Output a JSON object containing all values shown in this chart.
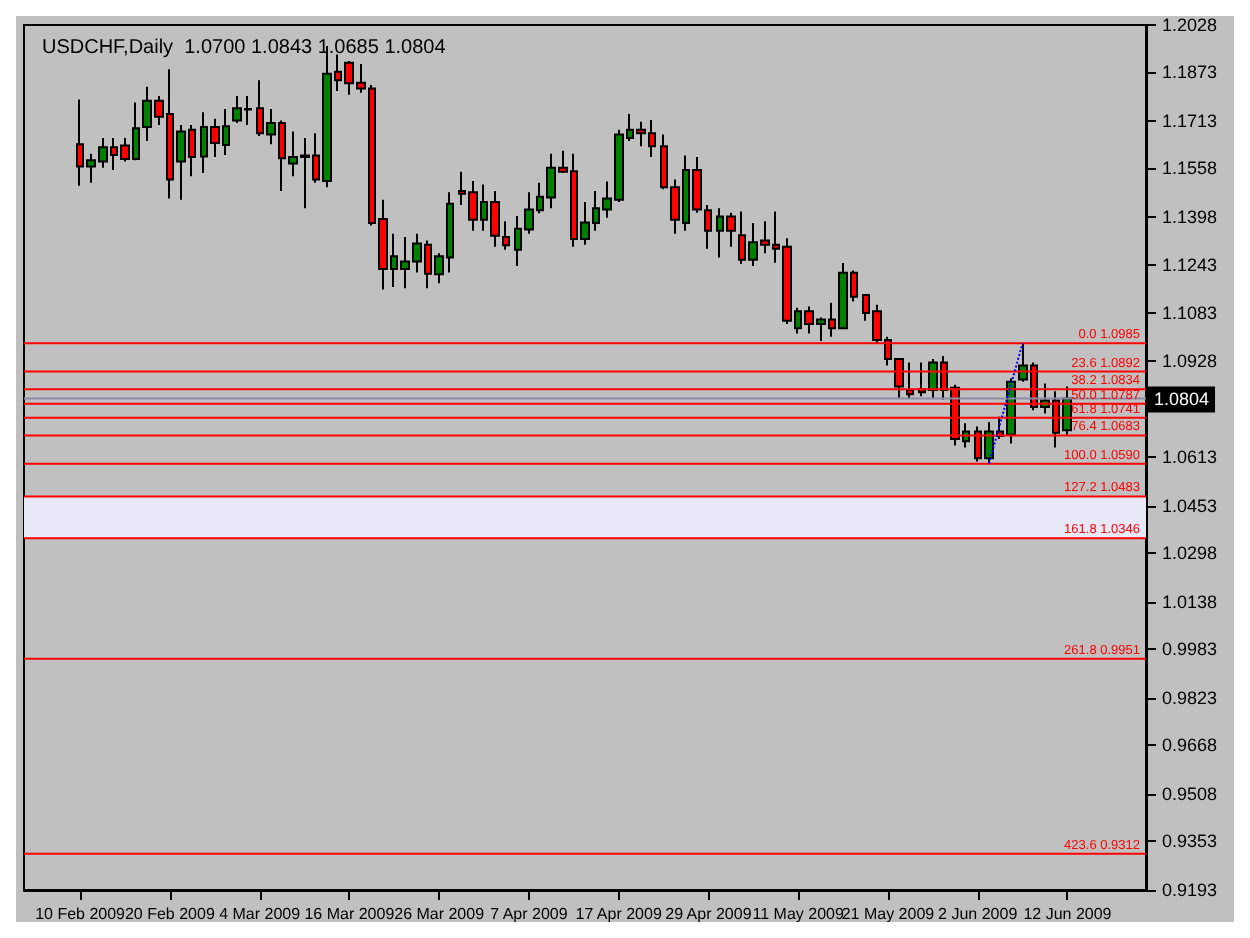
{
  "chart_data": {
    "type": "candlestick",
    "title": "USDCHF,Daily  1.0700 1.0843 1.0685 1.0804",
    "categories": [
      "10 Feb 2009",
      null,
      null,
      null,
      null,
      null,
      null,
      null,
      "20 Feb 2009",
      null,
      null,
      null,
      null,
      null,
      null,
      null,
      "4 Mar 2009",
      null,
      null,
      null,
      null,
      null,
      null,
      null,
      "16 Mar 2009",
      null,
      null,
      null,
      null,
      null,
      null,
      null,
      "26 Mar 2009",
      null,
      null,
      null,
      null,
      null,
      null,
      null,
      "7 Apr 2009",
      null,
      null,
      null,
      null,
      null,
      null,
      null,
      "17 Apr 2009",
      null,
      null,
      null,
      null,
      null,
      null,
      null,
      "29 Apr 2009",
      null,
      null,
      null,
      null,
      null,
      null,
      null,
      "11 May 2009",
      null,
      null,
      null,
      null,
      null,
      null,
      null,
      "21 May 2009",
      null,
      null,
      null,
      null,
      null,
      null,
      null,
      "2 Jun 2009",
      null,
      null,
      null,
      null,
      null,
      null,
      null,
      "12 Jun 2009"
    ],
    "ohlc": [
      [
        1.1637,
        1.1784,
        1.1501,
        1.1564
      ],
      [
        1.1564,
        1.1606,
        1.1511,
        1.1585
      ],
      [
        1.1581,
        1.1658,
        1.156,
        1.1627
      ],
      [
        1.1627,
        1.1658,
        1.1553,
        1.1602
      ],
      [
        1.1633,
        1.1658,
        1.1581,
        1.1589
      ],
      [
        1.1589,
        1.1774,
        1.1585,
        1.169
      ],
      [
        1.1694,
        1.1826,
        1.1648,
        1.178
      ],
      [
        1.178,
        1.1795,
        1.17,
        1.1727
      ],
      [
        1.1736,
        1.1883,
        1.1459,
        1.1522
      ],
      [
        1.1581,
        1.17,
        1.1455,
        1.1679
      ],
      [
        1.1685,
        1.17,
        1.1532,
        1.1595
      ],
      [
        1.1597,
        1.1742,
        1.1543,
        1.1694
      ],
      [
        1.1694,
        1.1721,
        1.1595,
        1.1641
      ],
      [
        1.1635,
        1.1753,
        1.1602,
        1.1696
      ],
      [
        1.1715,
        1.1795,
        1.1707,
        1.1755
      ],
      [
        1.1751,
        1.1795,
        1.17,
        1.1753
      ],
      [
        1.1755,
        1.1847,
        1.1664,
        1.1673
      ],
      [
        1.1669,
        1.1753,
        1.1637,
        1.1707
      ],
      [
        1.1707,
        1.1715,
        1.1484,
        1.1591
      ],
      [
        1.1574,
        1.1679,
        1.1532,
        1.1595
      ],
      [
        1.16,
        1.1658,
        1.1427,
        1.1595
      ],
      [
        1.16,
        1.1673,
        1.1511,
        1.1522
      ],
      [
        1.1517,
        1.1959,
        1.1496,
        1.1868
      ],
      [
        1.1875,
        1.1931,
        1.1812,
        1.1847
      ],
      [
        1.1904,
        1.191,
        1.1799,
        1.1837
      ],
      [
        1.1839,
        1.19,
        1.1806,
        1.182
      ],
      [
        1.182,
        1.1831,
        1.1371,
        1.1379
      ],
      [
        1.1392,
        1.1455,
        1.1161,
        1.1228
      ],
      [
        1.1228,
        1.1344,
        1.1169,
        1.127
      ],
      [
        1.1228,
        1.1333,
        1.1165,
        1.1253
      ],
      [
        1.1253,
        1.1344,
        1.1217,
        1.1312
      ],
      [
        1.1308,
        1.1322,
        1.1165,
        1.1213
      ],
      [
        1.1211,
        1.128,
        1.1182,
        1.127
      ],
      [
        1.1266,
        1.148,
        1.1217,
        1.1442
      ],
      [
        1.1484,
        1.1547,
        1.1438,
        1.1475
      ],
      [
        1.148,
        1.1517,
        1.1354,
        1.139
      ],
      [
        1.139,
        1.1505,
        1.1354,
        1.1448
      ],
      [
        1.1448,
        1.1484,
        1.1301,
        1.1337
      ],
      [
        1.1333,
        1.1385,
        1.1291,
        1.1306
      ],
      [
        1.1291,
        1.1402,
        1.1238,
        1.136
      ],
      [
        1.1358,
        1.148,
        1.1344,
        1.1423
      ],
      [
        1.1421,
        1.1511,
        1.1411,
        1.1465
      ],
      [
        1.1463,
        1.1606,
        1.1427,
        1.156
      ],
      [
        1.156,
        1.1616,
        1.1543,
        1.1547
      ],
      [
        1.1549,
        1.1606,
        1.1301,
        1.1327
      ],
      [
        1.1327,
        1.1448,
        1.1308,
        1.1381
      ],
      [
        1.1379,
        1.1484,
        1.1354,
        1.1427
      ],
      [
        1.1423,
        1.1515,
        1.1396,
        1.1459
      ],
      [
        1.1455,
        1.1685,
        1.1448,
        1.1669
      ],
      [
        1.1658,
        1.1736,
        1.1648,
        1.1685
      ],
      [
        1.1685,
        1.1711,
        1.1631,
        1.1673
      ],
      [
        1.1673,
        1.1717,
        1.1595,
        1.1631
      ],
      [
        1.1631,
        1.1669,
        1.149,
        1.1496
      ],
      [
        1.1496,
        1.1522,
        1.1344,
        1.139
      ],
      [
        1.1379,
        1.16,
        1.1354,
        1.1553
      ],
      [
        1.1553,
        1.1595,
        1.1413,
        1.1423
      ],
      [
        1.1421,
        1.1438,
        1.1295,
        1.1354
      ],
      [
        1.1354,
        1.1427,
        1.1266,
        1.14
      ],
      [
        1.14,
        1.1413,
        1.1301,
        1.1354
      ],
      [
        1.1339,
        1.1417,
        1.1245,
        1.1259
      ],
      [
        1.1259,
        1.1379,
        1.1238,
        1.1316
      ],
      [
        1.1322,
        1.1385,
        1.128,
        1.1308
      ],
      [
        1.1308,
        1.1417,
        1.1249,
        1.1295
      ],
      [
        1.1301,
        1.1329,
        1.1048,
        1.1059
      ],
      [
        1.1034,
        1.1101,
        1.1017,
        1.109
      ],
      [
        1.109,
        1.1105,
        1.1017,
        1.1048
      ],
      [
        1.1048,
        1.1069,
        1.0992,
        1.1063
      ],
      [
        1.1063,
        1.1118,
        1.1006,
        1.1034
      ],
      [
        1.1034,
        1.1248,
        1.1032,
        1.1216
      ],
      [
        1.1216,
        1.1223,
        1.1122,
        1.1137
      ],
      [
        1.1143,
        1.1143,
        1.1059,
        1.1084
      ],
      [
        1.109,
        1.1111,
        1.0985,
        1.0996
      ],
      [
        1.0996,
        1.1006,
        1.0912,
        1.0933
      ],
      [
        1.0933,
        1.0933,
        1.0803,
        1.0843
      ],
      [
        1.0832,
        1.0922,
        1.0803,
        1.0818
      ],
      [
        1.0834,
        1.0922,
        1.0811,
        1.0824
      ],
      [
        1.0832,
        1.0933,
        1.0803,
        1.0922
      ],
      [
        1.0922,
        1.0943,
        1.0801,
        1.0832
      ],
      [
        1.0839,
        1.0849,
        1.065,
        1.0671
      ],
      [
        1.0664,
        1.0723,
        1.0643,
        1.0696
      ],
      [
        1.0696,
        1.0712,
        1.0597,
        1.0608
      ],
      [
        1.0608,
        1.0727,
        1.059,
        1.0696
      ],
      [
        1.0696,
        1.0744,
        1.0671,
        1.0681
      ],
      [
        1.0685,
        1.087,
        1.0656,
        1.0859
      ],
      [
        1.0866,
        1.0985,
        1.0859,
        1.0912
      ],
      [
        1.0912,
        1.0922,
        1.0765,
        1.0776
      ],
      [
        1.0776,
        1.0853,
        1.0755,
        1.0797
      ],
      [
        1.0797,
        1.0828,
        1.0643,
        1.0692
      ],
      [
        1.07,
        1.0843,
        1.0685,
        1.0804
      ]
    ],
    "colors": [
      "#ff0000",
      "#008000",
      "#008000",
      "#ff0000",
      "#ff0000",
      "#008000",
      "#008000",
      "#ff0000",
      "#ff0000",
      "#008000",
      "#ff0000",
      "#008000",
      "#ff0000",
      "#008000",
      "#008000",
      "#008000",
      "#ff0000",
      "#008000",
      "#ff0000",
      "#008000",
      "#ff0000",
      "#ff0000",
      "#008000",
      "#ff0000",
      "#ff0000",
      "#ff0000",
      "#ff0000",
      "#ff0000",
      "#008000",
      "#008000",
      "#008000",
      "#ff0000",
      "#008000",
      "#008000",
      "#ff0000",
      "#ff0000",
      "#008000",
      "#ff0000",
      "#ff0000",
      "#008000",
      "#008000",
      "#008000",
      "#008000",
      "#ff0000",
      "#ff0000",
      "#008000",
      "#008000",
      "#008000",
      "#008000",
      "#008000",
      "#ff0000",
      "#ff0000",
      "#ff0000",
      "#ff0000",
      "#008000",
      "#ff0000",
      "#ff0000",
      "#008000",
      "#ff0000",
      "#ff0000",
      "#008000",
      "#ff0000",
      "#ff0000",
      "#ff0000",
      "#008000",
      "#ff0000",
      "#008000",
      "#ff0000",
      "#008000",
      "#ff0000",
      "#ff0000",
      "#ff0000",
      "#ff0000",
      "#ff0000",
      "#ff0000",
      "#ff0000",
      "#008000",
      "#ff0000",
      "#ff0000",
      "#008000",
      "#ff0000",
      "#008000",
      "#ff0000",
      "#008000",
      "#008000",
      "#ff0000",
      "#008000",
      "#ff0000",
      "#008000"
    ],
    "series": [
      {
        "type": "line",
        "color": "#0000ff",
        "line_style": "dotted",
        "values": [
          null,
          null,
          null,
          null,
          null,
          null,
          null,
          null,
          null,
          null,
          null,
          null,
          null,
          null,
          null,
          null,
          null,
          null,
          null,
          null,
          null,
          null,
          null,
          null,
          null,
          null,
          null,
          null,
          null,
          null,
          null,
          null,
          null,
          null,
          null,
          null,
          null,
          null,
          null,
          null,
          null,
          null,
          null,
          null,
          null,
          null,
          null,
          null,
          null,
          null,
          null,
          null,
          null,
          null,
          null,
          null,
          null,
          null,
          null,
          null,
          null,
          null,
          null,
          null,
          null,
          null,
          null,
          null,
          null,
          null,
          null,
          null,
          null,
          null,
          null,
          null,
          null,
          null,
          null,
          null,
          null,
          1.059,
          null,
          null,
          1.0985,
          null,
          null,
          null,
          null
        ]
      }
    ],
    "ylim": [
      0.9193,
      1.2028
    ],
    "yticks": [
      0.9193,
      0.9353,
      0.9508,
      0.9668,
      0.9823,
      0.9983,
      1.0138,
      1.0298,
      1.0453,
      1.0613,
      1.0928,
      1.1083,
      1.1243,
      1.1398,
      1.1558,
      1.1713,
      1.1873,
      1.2028
    ],
    "ref_lines": [
      {
        "axis": "y",
        "value": 1.0985,
        "label": "0.0 1.0985",
        "color": "#ff0000"
      },
      {
        "axis": "y",
        "value": 1.0892,
        "label": "23.6 1.0892",
        "color": "#ff0000"
      },
      {
        "axis": "y",
        "value": 1.0834,
        "label": "38.2 1.0834",
        "color": "#ff0000"
      },
      {
        "axis": "y",
        "value": 1.0787,
        "label": "50.0 1.0787",
        "color": "#ff0000"
      },
      {
        "axis": "y",
        "value": 1.0741,
        "label": "61.8 1.0741",
        "color": "#ff0000"
      },
      {
        "axis": "y",
        "value": 1.0683,
        "label": "76.4 1.0683",
        "color": "#ff0000"
      },
      {
        "axis": "y",
        "value": 1.059,
        "label": "100.0 1.0590",
        "color": "#ff0000"
      },
      {
        "axis": "y",
        "value": 1.0483,
        "label": "127.2 1.0483",
        "color": "#ff0000"
      },
      {
        "axis": "y",
        "value": 1.0346,
        "label": "161.8 1.0346",
        "color": "#ff0000"
      },
      {
        "axis": "y",
        "value": 0.9951,
        "label": "261.8 0.9951",
        "color": "#ff0000"
      },
      {
        "axis": "y",
        "value": 0.9312,
        "label": "423.6 0.9312",
        "color": "#ff0000"
      },
      {
        "axis": "y",
        "value": 1.0804,
        "label": "1.0804",
        "color": "#8c8ca6"
      }
    ],
    "bands": [
      {
        "axis": "y",
        "from": 1.0346,
        "to": 1.0483,
        "color": "#e8e8f8"
      }
    ],
    "grid": false
  }
}
